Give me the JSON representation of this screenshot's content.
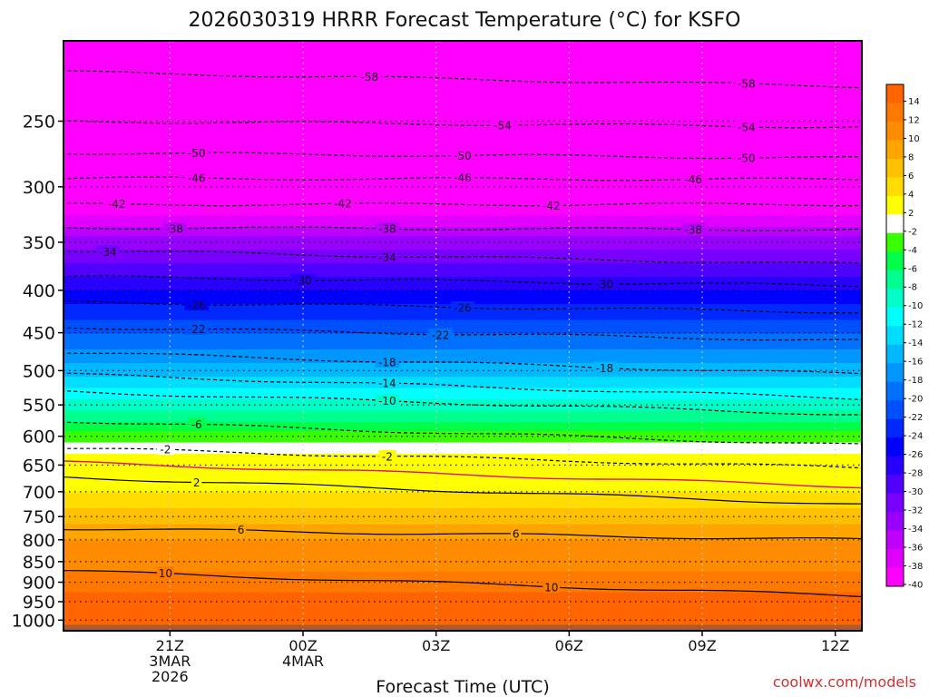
{
  "chart_data": {
    "type": "heatmap",
    "title": "2026030319 HRRR Forecast Temperature (°C) for KSFO",
    "xlabel": "Forecast Time (UTC)",
    "ylabel": "",
    "x_range_hours": [
      -2.4,
      15.6
    ],
    "y_range_hpa": [
      200,
      1030
    ],
    "pressure_ticks": [
      250,
      300,
      350,
      400,
      450,
      500,
      550,
      600,
      650,
      700,
      750,
      800,
      850,
      900,
      950,
      1000
    ],
    "time_ticks": [
      {
        "hour": 0,
        "lines": [
          "21Z",
          "3MAR",
          "2026"
        ]
      },
      {
        "hour": 3,
        "lines": [
          "00Z",
          "4MAR"
        ]
      },
      {
        "hour": 6,
        "lines": [
          "03Z"
        ]
      },
      {
        "hour": 9,
        "lines": [
          "06Z"
        ]
      },
      {
        "hour": 12,
        "lines": [
          "09Z"
        ]
      },
      {
        "hour": 15,
        "lines": [
          "12Z"
        ]
      }
    ],
    "temperature_profile": {
      "pressure_hpa": [
        200,
        250,
        300,
        350,
        400,
        450,
        500,
        550,
        600,
        650,
        700,
        750,
        800,
        850,
        900,
        950,
        1000,
        1030
      ],
      "temperature_c": [
        -60,
        -54,
        -45,
        -35,
        -28,
        -22,
        -17,
        -11,
        -5,
        0,
        2,
        5,
        8,
        9,
        11,
        13,
        13,
        14
      ]
    },
    "colorbar": {
      "levels": [
        -40,
        -38,
        -36,
        -34,
        -32,
        -30,
        -28,
        -26,
        -24,
        -22,
        -20,
        -18,
        -16,
        -14,
        -12,
        -10,
        -8,
        -6,
        -4,
        -2,
        2,
        4,
        6,
        8,
        10,
        12,
        14
      ],
      "labels": [
        "14",
        "12",
        "10",
        "8",
        "6",
        "4",
        "2",
        "-2",
        "-4",
        "-6",
        "-8",
        "-10",
        "-12",
        "-14",
        "-16",
        "-18",
        "-20",
        "-22",
        "-24",
        "-26",
        "-28",
        "-30",
        "-32",
        "-34",
        "-36",
        "-38",
        "-40"
      ],
      "colors": [
        "#ff6400",
        "#ff7800",
        "#ff8c00",
        "#ffa500",
        "#ffc000",
        "#ffdd00",
        "#ffff00",
        "#ffffff",
        "#38ff00",
        "#00ff48",
        "#00ff90",
        "#00ffc8",
        "#00ffff",
        "#00ddff",
        "#00b8ff",
        "#0096ff",
        "#0070ff",
        "#0050ff",
        "#0028ff",
        "#0000ff",
        "#2800ff",
        "#5000ff",
        "#7800ff",
        "#9800ff",
        "#c000ff",
        "#e000ff",
        "#ff00ff"
      ]
    },
    "contours": [
      {
        "value": -58,
        "pressure_at_start": 218,
        "pressure_at_end": 227,
        "labels": [
          {
            "hour": 4.5,
            "text": "-58"
          },
          {
            "hour": 13.0,
            "text": "-58"
          }
        ]
      },
      {
        "value": -54,
        "pressure_at_start": 250,
        "pressure_at_end": 254,
        "labels": [
          {
            "hour": 7.5,
            "text": "-54"
          },
          {
            "hour": 13.0,
            "text": "-54"
          }
        ]
      },
      {
        "value": -50,
        "pressure_at_start": 273,
        "pressure_at_end": 277,
        "labels": [
          {
            "hour": 0.6,
            "text": "-50"
          },
          {
            "hour": 6.6,
            "text": "-50"
          },
          {
            "hour": 13.0,
            "text": "-50"
          }
        ]
      },
      {
        "value": -46,
        "pressure_at_start": 293,
        "pressure_at_end": 294,
        "labels": [
          {
            "hour": 0.6,
            "text": "-46"
          },
          {
            "hour": 6.6,
            "text": "-46"
          },
          {
            "hour": 11.8,
            "text": "-46"
          }
        ]
      },
      {
        "value": -42,
        "pressure_at_start": 315,
        "pressure_at_end": 315,
        "labels": [
          {
            "hour": -1.2,
            "text": "-42"
          },
          {
            "hour": 3.9,
            "text": "-42"
          },
          {
            "hour": 8.6,
            "text": "-42"
          }
        ]
      },
      {
        "value": -38,
        "pressure_at_start": 336,
        "pressure_at_end": 338,
        "labels": [
          {
            "hour": 0.1,
            "text": "-38"
          },
          {
            "hour": 4.9,
            "text": "-38"
          },
          {
            "hour": 11.8,
            "text": "-38"
          }
        ]
      },
      {
        "value": -34,
        "pressure_at_start": 358,
        "pressure_at_end": 372,
        "labels": [
          {
            "hour": -1.4,
            "text": "-34"
          },
          {
            "hour": 4.9,
            "text": "-34"
          }
        ]
      },
      {
        "value": -30,
        "pressure_at_start": 385,
        "pressure_at_end": 395,
        "labels": [
          {
            "hour": 3.0,
            "text": "-30"
          },
          {
            "hour": 9.8,
            "text": "-30"
          }
        ]
      },
      {
        "value": -26,
        "pressure_at_start": 413,
        "pressure_at_end": 425,
        "labels": [
          {
            "hour": 0.6,
            "text": "-26"
          },
          {
            "hour": 6.6,
            "text": "-26"
          }
        ]
      },
      {
        "value": -22,
        "pressure_at_start": 443,
        "pressure_at_end": 460,
        "labels": [
          {
            "hour": 0.6,
            "text": "-22"
          },
          {
            "hour": 6.1,
            "text": "-22"
          }
        ]
      },
      {
        "value": -18,
        "pressure_at_start": 475,
        "pressure_at_end": 505,
        "labels": [
          {
            "hour": 4.9,
            "text": "-18"
          },
          {
            "hour": 9.8,
            "text": "-18"
          }
        ]
      },
      {
        "value": -14,
        "pressure_at_start": 505,
        "pressure_at_end": 540,
        "labels": [
          {
            "hour": 4.9,
            "text": "-14"
          }
        ]
      },
      {
        "value": -10,
        "pressure_at_start": 530,
        "pressure_at_end": 565,
        "labels": [
          {
            "hour": 4.9,
            "text": "-10"
          }
        ]
      },
      {
        "value": -6,
        "pressure_at_start": 575,
        "pressure_at_end": 615,
        "labels": [
          {
            "hour": 0.6,
            "text": "-6"
          }
        ]
      },
      {
        "value": -2,
        "pressure_at_start": 620,
        "pressure_at_end": 655,
        "labels": [
          {
            "hour": -0.1,
            "text": "-2"
          },
          {
            "hour": 4.9,
            "text": "-2"
          }
        ]
      },
      {
        "value": 0,
        "pressure_at_start": 645,
        "pressure_at_end": 690,
        "labels": []
      },
      {
        "value": 2,
        "pressure_at_start": 672,
        "pressure_at_end": 725,
        "labels": [
          {
            "hour": 0.6,
            "text": "2"
          }
        ]
      },
      {
        "value": 6,
        "pressure_at_start": 775,
        "pressure_at_end": 800,
        "labels": [
          {
            "hour": 1.6,
            "text": "6"
          },
          {
            "hour": 7.8,
            "text": "6"
          }
        ]
      },
      {
        "value": 10,
        "pressure_at_start": 872,
        "pressure_at_end": 935,
        "labels": [
          {
            "hour": -0.1,
            "text": "10"
          },
          {
            "hour": 8.6,
            "text": "10"
          }
        ]
      }
    ],
    "grid": true
  },
  "credit": "coolwx.com/models"
}
